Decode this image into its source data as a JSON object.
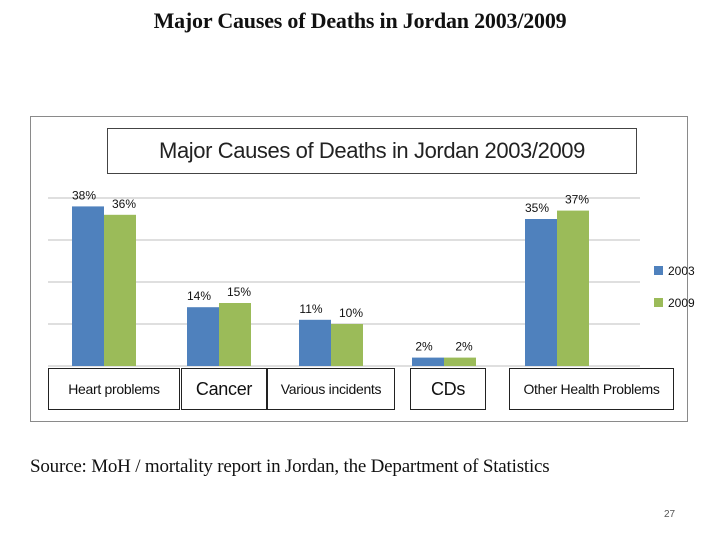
{
  "slide": {
    "title": "Major Causes of Deaths in Jordan 2003/2009",
    "source": "Source: MoH / mortality report in Jordan, the Department of Statistics",
    "page_number": "27"
  },
  "chart_data": {
    "type": "bar",
    "title": "Major Causes of Deaths in Jordan 2003/2009",
    "categories": [
      "Heart problems",
      "Cancer",
      "Various incidents",
      "CDs",
      "Other Health Problems"
    ],
    "series": [
      {
        "name": "2003",
        "color": "#4f81bd",
        "values": [
          38,
          14,
          11,
          2,
          35
        ],
        "labels": [
          "38%",
          "14%",
          "11%",
          "2%",
          "35%"
        ]
      },
      {
        "name": "2009",
        "color": "#9bbb59",
        "values": [
          36,
          15,
          10,
          2,
          37
        ],
        "labels": [
          "36%",
          "15%",
          "10%",
          "2%",
          "37%"
        ]
      }
    ],
    "ylim": [
      0,
      40
    ],
    "gridlines": [
      0,
      10,
      20,
      30,
      40
    ],
    "legend_position": "right",
    "xlabel": "",
    "ylabel": ""
  }
}
